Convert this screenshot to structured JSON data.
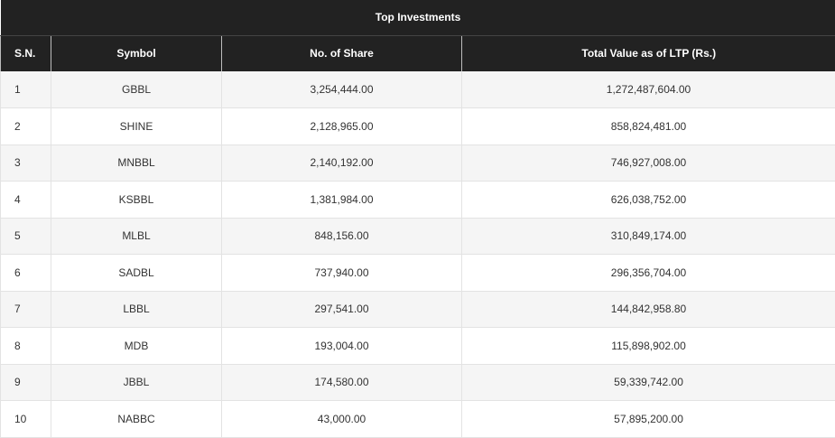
{
  "table": {
    "title": "Top Investments",
    "headers": [
      "S.N.",
      "Symbol",
      "No. of Share",
      "Total Value as of LTP (Rs.)"
    ],
    "rows": [
      [
        "1",
        "GBBL",
        "3,254,444.00",
        "1,272,487,604.00"
      ],
      [
        "2",
        "SHINE",
        "2,128,965.00",
        "858,824,481.00"
      ],
      [
        "3",
        "MNBBL",
        "2,140,192.00",
        "746,927,008.00"
      ],
      [
        "4",
        "KSBBL",
        "1,381,984.00",
        "626,038,752.00"
      ],
      [
        "5",
        "MLBL",
        "848,156.00",
        "310,849,174.00"
      ],
      [
        "6",
        "SADBL",
        "737,940.00",
        "296,356,704.00"
      ],
      [
        "7",
        "LBBL",
        "297,541.00",
        "144,842,958.80"
      ],
      [
        "8",
        "MDB",
        "193,004.00",
        "115,898,902.00"
      ],
      [
        "9",
        "JBBL",
        "174,580.00",
        "59,339,742.00"
      ],
      [
        "10",
        "NABBC",
        "43,000.00",
        "57,895,200.00"
      ]
    ]
  }
}
